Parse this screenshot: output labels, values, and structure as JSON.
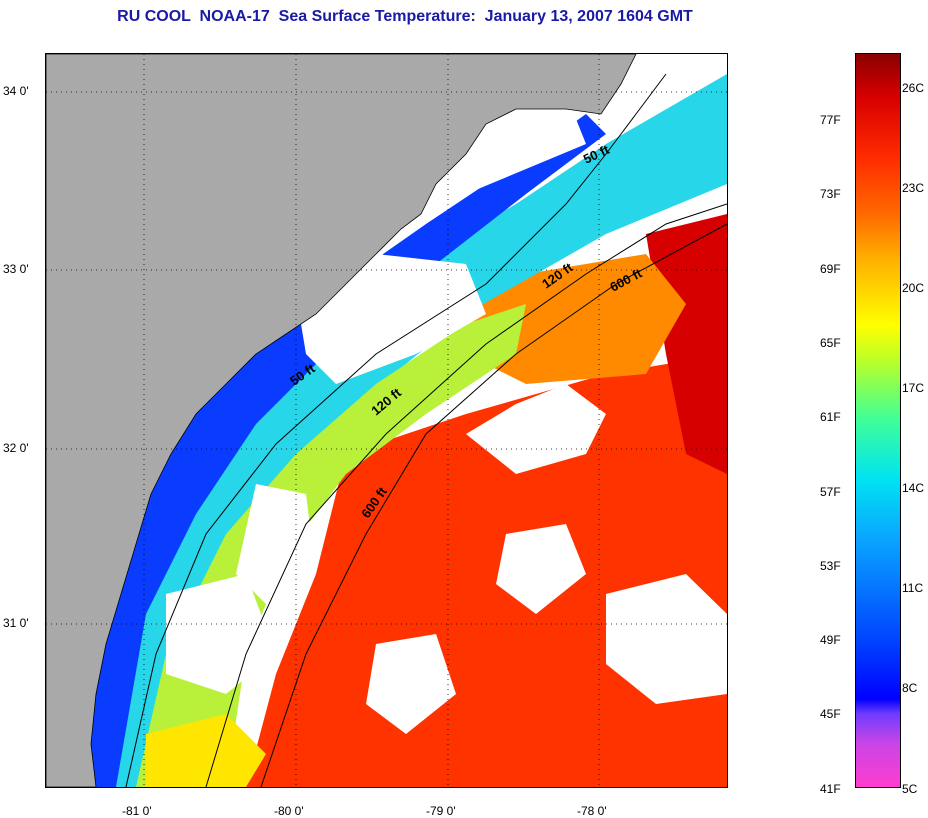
{
  "title": "RU COOL  NOAA-17  Sea Surface Temperature:  January 13, 2007 1604 GMT",
  "map": {
    "lat_labels": [
      "34 0'",
      "33 0'",
      "32 0'",
      "31 0'"
    ],
    "lon_labels": [
      "-81 0'",
      "-80 0'",
      "-79 0'",
      "-78 0'"
    ],
    "contour_labels": [
      "50 ft",
      "120 ft",
      "600 ft",
      "50 ft",
      "120 ft",
      "600 ft"
    ],
    "colors": {
      "land": "#a9a9a9",
      "cloud": "#ffffff",
      "cold": "#0000ff",
      "warm": "#ff2a00"
    }
  },
  "colorbar": {
    "fahrenheit": [
      "77F",
      "73F",
      "69F",
      "65F",
      "61F",
      "57F",
      "53F",
      "49F",
      "45F",
      "41F"
    ],
    "celsius": [
      "26C",
      "23C",
      "20C",
      "17C",
      "14C",
      "11C",
      "8C",
      "5C"
    ]
  }
}
